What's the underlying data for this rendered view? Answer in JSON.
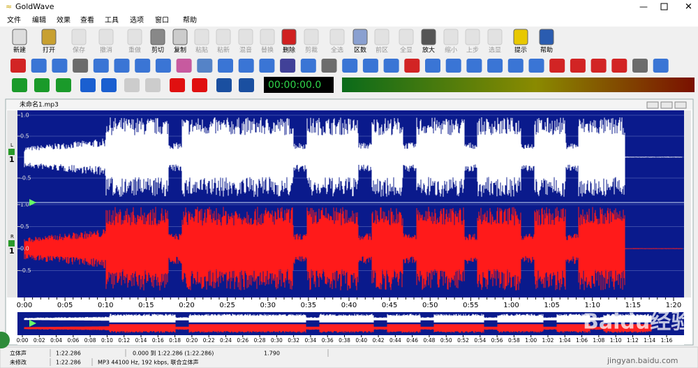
{
  "window": {
    "title": "GoldWave"
  },
  "menu": [
    "文件",
    "编辑",
    "效果",
    "查看",
    "工具",
    "选项",
    "窗口",
    "帮助"
  ],
  "toolbar": [
    {
      "label": "新建",
      "enabled": true
    },
    {
      "label": "打开",
      "enabled": true
    },
    {
      "label": "保存",
      "enabled": false
    },
    {
      "label": "撤消",
      "enabled": false
    },
    {
      "label": "重做",
      "enabled": false
    },
    {
      "label": "剪切",
      "enabled": true
    },
    {
      "label": "复制",
      "enabled": true
    },
    {
      "label": "粘贴",
      "enabled": false
    },
    {
      "label": "粘新",
      "enabled": false
    },
    {
      "label": "混音",
      "enabled": false
    },
    {
      "label": "替换",
      "enabled": false
    },
    {
      "label": "删除",
      "enabled": true
    },
    {
      "label": "剪裁",
      "enabled": false
    },
    {
      "label": "全选",
      "enabled": false
    },
    {
      "label": "区数",
      "enabled": true
    },
    {
      "label": "前区",
      "enabled": false
    },
    {
      "label": "全显",
      "enabled": false
    },
    {
      "label": "放大",
      "enabled": true
    },
    {
      "label": "缩小",
      "enabled": false
    },
    {
      "label": "上步",
      "enabled": false
    },
    {
      "label": "选显",
      "enabled": false
    },
    {
      "label": "提示",
      "enabled": true
    },
    {
      "label": "帮助",
      "enabled": true
    }
  ],
  "time_display": "00:00:00.0",
  "document": {
    "title": "未命名1.mp3",
    "channels": [
      {
        "name": "L",
        "number": "1",
        "color": "#ffffff",
        "ticks": [
          {
            "value": 1,
            "label": "1.0"
          },
          0.5,
          -0.5
        ]
      },
      {
        "name": "R",
        "number": "1",
        "color": "#ff1a1a",
        "ticks": [
          {
            "value": 1,
            "label": "1.0"
          },
          0.5,
          {
            "value": 0,
            "label": "0.0"
          },
          -0.5
        ]
      }
    ],
    "time_ruler": [
      "0:00",
      "0:05",
      "0:10",
      "0:15",
      "0:20",
      "0:25",
      "0:30",
      "0:35",
      "0:40",
      "0:45",
      "0:50",
      "0:55",
      "1:00",
      "1:05",
      "1:10",
      "1:15",
      "1:20"
    ],
    "overview_ruler": [
      "0:00",
      "0:02",
      "0:04",
      "0:06",
      "0:08",
      "0:10",
      "0:12",
      "0:14",
      "0:16",
      "0:18",
      "0:20",
      "0:22",
      "0:24",
      "0:26",
      "0:28",
      "0:30",
      "0:32",
      "0:34",
      "0:36",
      "0:38",
      "0:40",
      "0:42",
      "0:44",
      "0:46",
      "0:48",
      "0:50",
      "0:52",
      "0:54",
      "0:56",
      "0:58",
      "1:00",
      "1:02",
      "1:04",
      "1:06",
      "1:08",
      "1:10",
      "1:12",
      "1:14",
      "1:16"
    ]
  },
  "status": {
    "row1": [
      "立体声",
      "1:22.286",
      "0.000 到 1:22.286 (1:22.286)",
      "1.790"
    ],
    "row2": [
      "未修改",
      "1:22.286",
      "MP3 44100 Hz, 192 kbps, 联合立体声"
    ]
  },
  "watermark": {
    "brand": "Baidu经验",
    "url": "jingyan.baidu.com"
  }
}
